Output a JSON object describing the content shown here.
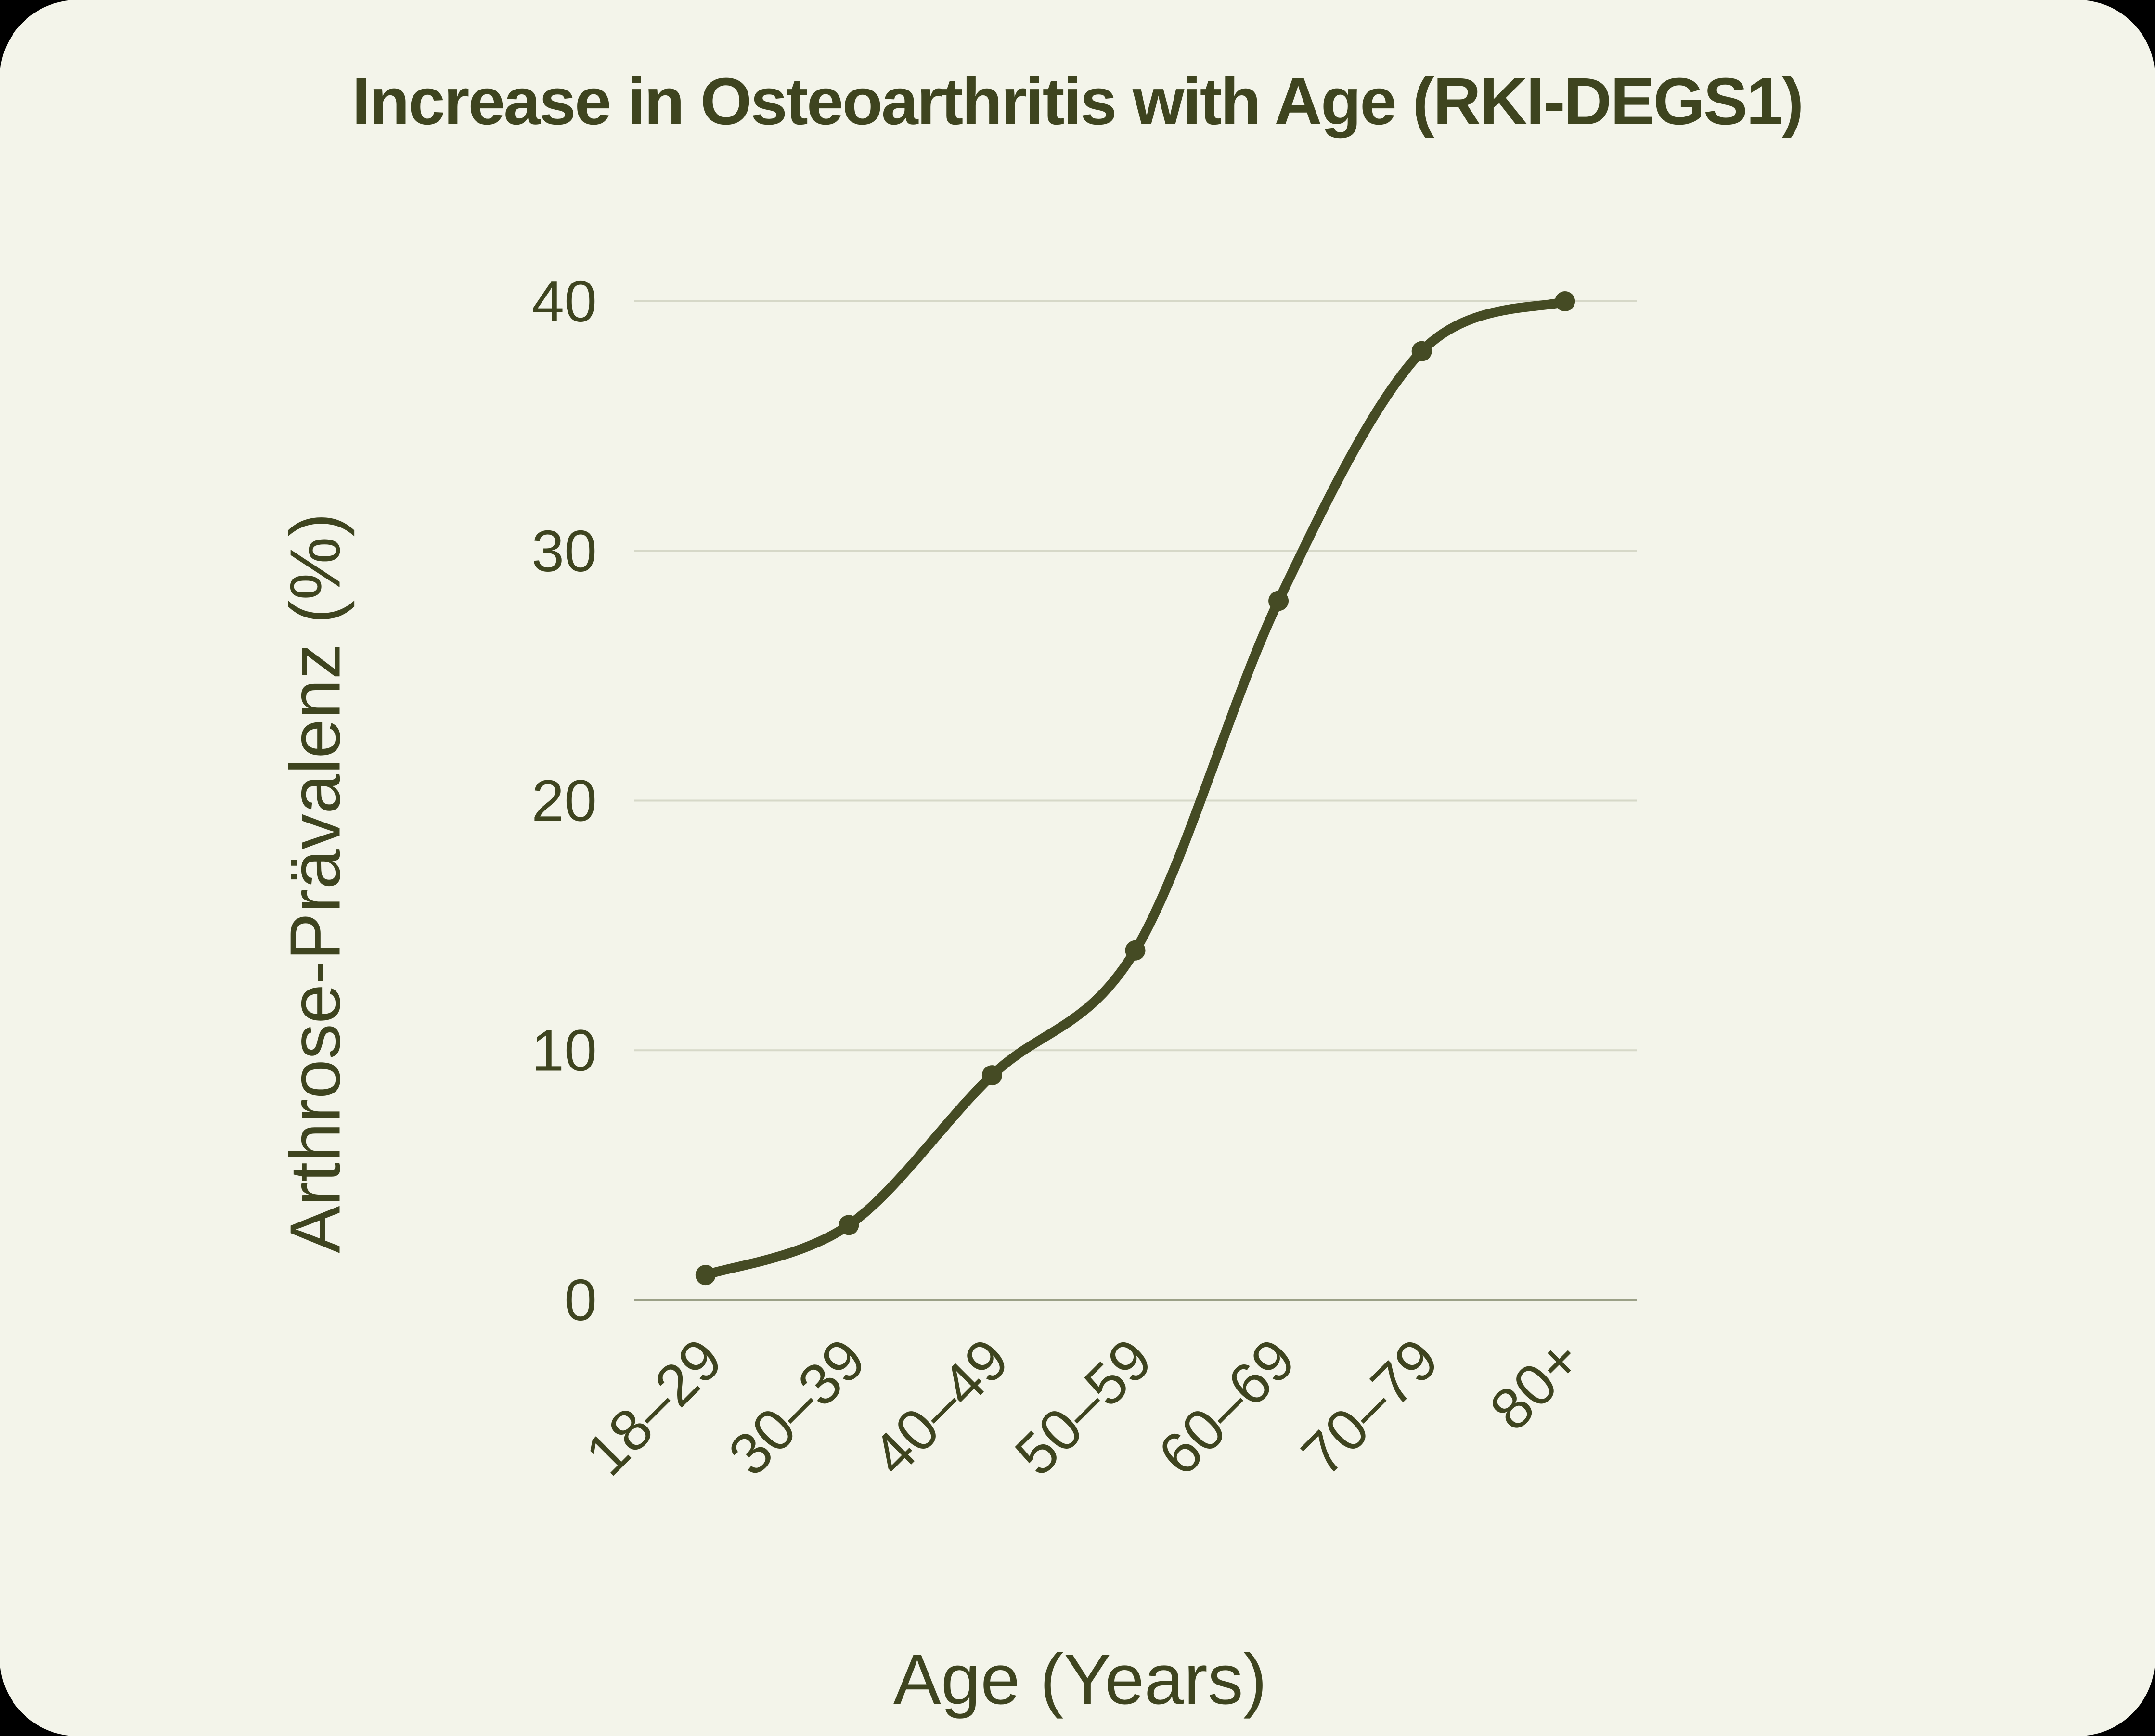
{
  "chart_data": {
    "type": "line",
    "title": "Increase in Osteoarthritis with Age (RKI-DEGS1)",
    "xlabel": "Age (Years)",
    "ylabel": "Arthrose-Prävalenz (%)",
    "categories": [
      "18–29",
      "30–39",
      "40–49",
      "50–59",
      "60–69",
      "70–79",
      "80+"
    ],
    "values": [
      1,
      3,
      9,
      14,
      28,
      38,
      40
    ],
    "yticks": [
      0,
      10,
      20,
      30,
      40
    ],
    "ylim": [
      0,
      40
    ],
    "grid": "horizontal-only",
    "legend": "none",
    "smooth": true,
    "marker": "dot",
    "colors": {
      "page": "#000000",
      "background": "#f3f4ea",
      "ink": "#3e441f",
      "line": "#454b24",
      "marker": "#454b24",
      "grid": "#d6d8c8",
      "baseline": "#9ba087"
    }
  }
}
